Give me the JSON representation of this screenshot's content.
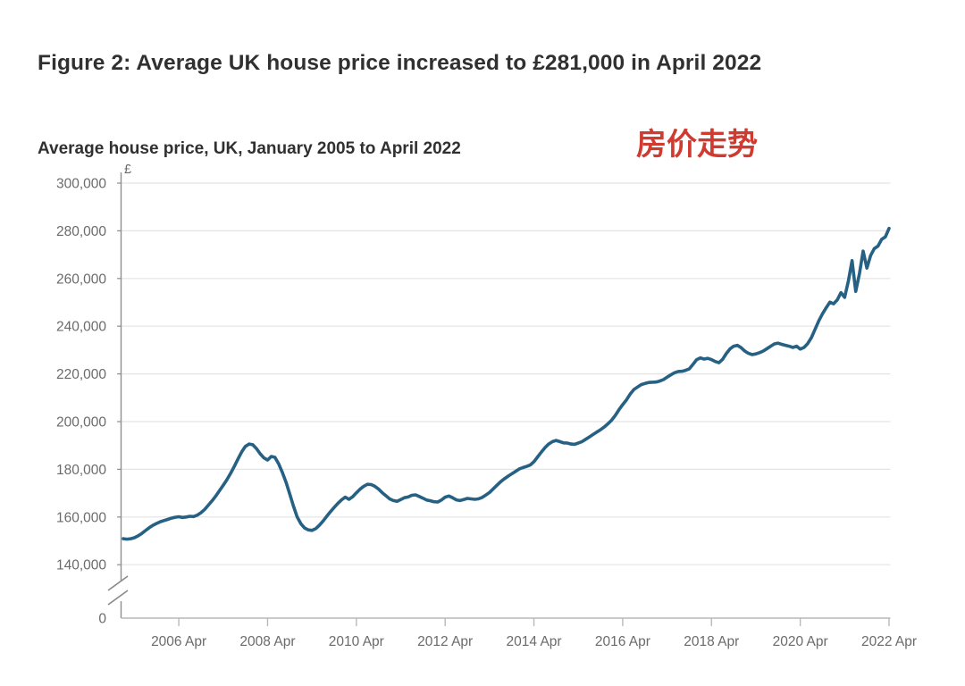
{
  "page": {
    "title": "Figure 2: Average UK house price increased to £281,000 in April 2022",
    "subtitle": "Average house price, UK, January 2005 to April 2022",
    "annotation": {
      "text": "房价走势",
      "color": "#cf3a31"
    }
  },
  "chart_data": {
    "type": "line",
    "title": "Average house price, UK, January 2005 to April 2022",
    "xlabel": "",
    "ylabel": "£",
    "currency_symbol": "£",
    "grid": "horizontal",
    "legend": "none",
    "line_color": "#266184",
    "axis_break": true,
    "ylim_display": [
      140000,
      300000
    ],
    "x_start": "2005-01",
    "x_end": "2022-04",
    "y_ticks": [
      {
        "label": "300,000",
        "value": 300000
      },
      {
        "label": "280,000",
        "value": 280000
      },
      {
        "label": "260,000",
        "value": 260000
      },
      {
        "label": "240,000",
        "value": 240000
      },
      {
        "label": "220,000",
        "value": 220000
      },
      {
        "label": "200,000",
        "value": 200000
      },
      {
        "label": "180,000",
        "value": 180000
      },
      {
        "label": "160,000",
        "value": 160000
      },
      {
        "label": "140,000",
        "value": 140000
      }
    ],
    "y_baseline_label": "0",
    "x_ticks": [
      {
        "label": "2006 Apr",
        "month": 15
      },
      {
        "label": "2008 Apr",
        "month": 39
      },
      {
        "label": "2010 Apr",
        "month": 63
      },
      {
        "label": "2012 Apr",
        "month": 87
      },
      {
        "label": "2014 Apr",
        "month": 111
      },
      {
        "label": "2016 Apr",
        "month": 135
      },
      {
        "label": "2018 Apr",
        "month": 159
      },
      {
        "label": "2020 Apr",
        "month": 183
      },
      {
        "label": "2022 Apr",
        "month": 207
      }
    ],
    "series": [
      {
        "name": "Average UK house price (£), monthly, Jan 2005 - Apr 2022",
        "values": [
          150900,
          150700,
          150900,
          151300,
          152100,
          153100,
          154300,
          155500,
          156500,
          157300,
          158000,
          158500,
          159000,
          159500,
          159900,
          160100,
          159800,
          160000,
          160300,
          160200,
          160800,
          161800,
          163200,
          165000,
          166800,
          168800,
          171000,
          173300,
          175600,
          178300,
          181200,
          184300,
          187300,
          189600,
          190600,
          190300,
          188700,
          186500,
          184800,
          183900,
          185400,
          185000,
          182300,
          178700,
          174500,
          169600,
          164600,
          160000,
          157200,
          155400,
          154600,
          154400,
          155100,
          156500,
          158300,
          160300,
          162200,
          164000,
          165700,
          167200,
          168300,
          167400,
          168500,
          170100,
          171700,
          172900,
          173700,
          173600,
          172900,
          171700,
          170200,
          168900,
          167600,
          166900,
          166600,
          167300,
          168100,
          168400,
          169100,
          169300,
          168600,
          167900,
          167100,
          166800,
          166400,
          166300,
          167100,
          168300,
          168800,
          168100,
          167200,
          166900,
          167300,
          167800,
          167600,
          167400,
          167600,
          168200,
          169200,
          170300,
          171800,
          173300,
          174800,
          176000,
          177100,
          178100,
          179100,
          180100,
          180700,
          181200,
          181800,
          183200,
          185200,
          187200,
          189100,
          190600,
          191600,
          192100,
          191600,
          191100,
          191000,
          190600,
          190500,
          191000,
          191600,
          192600,
          193600,
          194600,
          195600,
          196600,
          197700,
          199100,
          200600,
          202600,
          205000,
          207100,
          209100,
          211500,
          213400,
          214500,
          215500,
          216000,
          216400,
          216500,
          216600,
          217000,
          217600,
          218600,
          219600,
          220500,
          221000,
          221100,
          221500,
          222100,
          224000,
          226000,
          226700,
          226200,
          226500,
          226000,
          225200,
          224700,
          226100,
          228500,
          230500,
          231600,
          232000,
          231000,
          229600,
          228600,
          228100,
          228400,
          228900,
          229600,
          230600,
          231600,
          232600,
          232900,
          232400,
          232000,
          231600,
          231100,
          231600,
          230400,
          231100,
          232700,
          235200,
          238700,
          242200,
          245200,
          247700,
          250100,
          249400,
          251000,
          254100,
          252100,
          259000,
          267500,
          254600,
          262100,
          271500,
          264400,
          269600,
          272500,
          273600,
          276400,
          277500,
          281000
        ]
      }
    ]
  }
}
